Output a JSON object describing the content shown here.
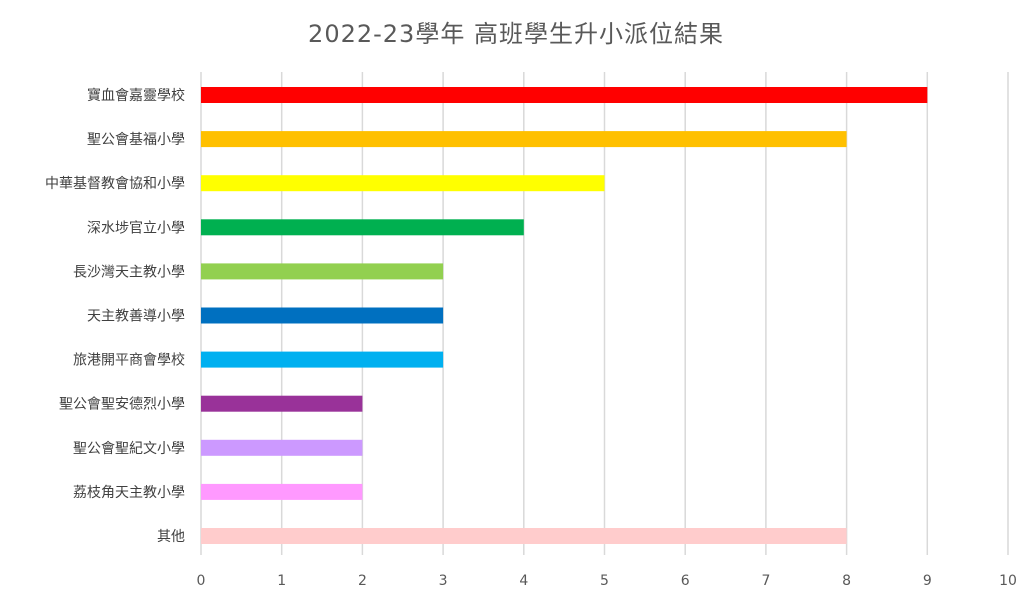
{
  "chart_data": {
    "type": "bar",
    "orientation": "horizontal",
    "title": "2022-23學年  高班學生升小派位結果",
    "xlabel": "",
    "ylabel": "",
    "xlim": [
      0,
      10
    ],
    "x_ticks": [
      "0",
      "1",
      "2",
      "3",
      "4",
      "5",
      "6",
      "7",
      "8",
      "9",
      "10"
    ],
    "grid": true,
    "legend": "none",
    "categories": [
      "寶血會嘉靈學校",
      "聖公會基福小學",
      "中華基督教會協和小學",
      "深水埗官立小學",
      "長沙灣天主教小學",
      "天主教善導小學",
      "旅港開平商會學校",
      "聖公會聖安德烈小學",
      "聖公會聖紀文小學",
      "荔枝角天主教小學",
      "其他"
    ],
    "values": [
      9,
      8,
      5,
      4,
      3,
      3,
      3,
      2,
      2,
      2,
      8
    ],
    "colors": [
      "#ff0000",
      "#ffc000",
      "#ffff00",
      "#00b050",
      "#92d050",
      "#0070c0",
      "#00b0f0",
      "#993299",
      "#cc99ff",
      "#ff99ff",
      "#ffcccc"
    ]
  }
}
